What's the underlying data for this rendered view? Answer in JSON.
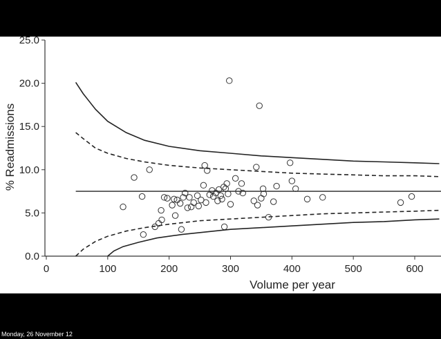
{
  "footer": {
    "timestamp": "Monday, 26 November 12"
  },
  "chart_data": {
    "type": "scatter",
    "title": "",
    "xlabel": "Volume per year",
    "ylabel": "% Readmissions",
    "xlim": [
      0,
      640
    ],
    "ylim": [
      0,
      25
    ],
    "x_ticks": [
      0,
      100,
      200,
      300,
      400,
      500,
      600
    ],
    "y_ticks": [
      "0.0",
      "5.0",
      "10.0",
      "15.0",
      "20.0",
      "25.0"
    ],
    "grid": false,
    "legend": "none",
    "points": [
      {
        "x": 125,
        "y": 5.7
      },
      {
        "x": 143,
        "y": 9.1
      },
      {
        "x": 156,
        "y": 6.9
      },
      {
        "x": 158,
        "y": 2.5
      },
      {
        "x": 168,
        "y": 10.0
      },
      {
        "x": 177,
        "y": 3.4
      },
      {
        "x": 183,
        "y": 3.8
      },
      {
        "x": 187,
        "y": 5.3
      },
      {
        "x": 188,
        "y": 4.2
      },
      {
        "x": 192,
        "y": 6.8
      },
      {
        "x": 197,
        "y": 6.7
      },
      {
        "x": 205,
        "y": 5.9
      },
      {
        "x": 208,
        "y": 6.6
      },
      {
        "x": 210,
        "y": 4.7
      },
      {
        "x": 213,
        "y": 6.5
      },
      {
        "x": 218,
        "y": 6.1
      },
      {
        "x": 220,
        "y": 3.1
      },
      {
        "x": 223,
        "y": 6.8
      },
      {
        "x": 226,
        "y": 7.3
      },
      {
        "x": 230,
        "y": 5.6
      },
      {
        "x": 233,
        "y": 6.8
      },
      {
        "x": 236,
        "y": 5.7
      },
      {
        "x": 240,
        "y": 6.2
      },
      {
        "x": 246,
        "y": 7.0
      },
      {
        "x": 248,
        "y": 5.8
      },
      {
        "x": 252,
        "y": 6.5
      },
      {
        "x": 256,
        "y": 8.2
      },
      {
        "x": 258,
        "y": 10.5
      },
      {
        "x": 260,
        "y": 6.2
      },
      {
        "x": 262,
        "y": 9.9
      },
      {
        "x": 266,
        "y": 7.1
      },
      {
        "x": 270,
        "y": 7.6
      },
      {
        "x": 272,
        "y": 6.9
      },
      {
        "x": 276,
        "y": 7.3
      },
      {
        "x": 279,
        "y": 6.4
      },
      {
        "x": 281,
        "y": 7.7
      },
      {
        "x": 284,
        "y": 7.0
      },
      {
        "x": 286,
        "y": 6.6
      },
      {
        "x": 289,
        "y": 8.0
      },
      {
        "x": 290,
        "y": 3.4
      },
      {
        "x": 292,
        "y": 7.8
      },
      {
        "x": 294,
        "y": 8.4
      },
      {
        "x": 296,
        "y": 7.2
      },
      {
        "x": 298,
        "y": 20.3
      },
      {
        "x": 300,
        "y": 6.0
      },
      {
        "x": 308,
        "y": 9.0
      },
      {
        "x": 313,
        "y": 7.5
      },
      {
        "x": 318,
        "y": 8.4
      },
      {
        "x": 320,
        "y": 7.3
      },
      {
        "x": 338,
        "y": 6.4
      },
      {
        "x": 342,
        "y": 10.3
      },
      {
        "x": 344,
        "y": 5.9
      },
      {
        "x": 347,
        "y": 17.4
      },
      {
        "x": 350,
        "y": 6.7
      },
      {
        "x": 353,
        "y": 7.8
      },
      {
        "x": 354,
        "y": 7.2
      },
      {
        "x": 362,
        "y": 4.5
      },
      {
        "x": 370,
        "y": 6.3
      },
      {
        "x": 375,
        "y": 8.1
      },
      {
        "x": 397,
        "y": 10.8
      },
      {
        "x": 400,
        "y": 8.7
      },
      {
        "x": 406,
        "y": 7.8
      },
      {
        "x": 425,
        "y": 6.6
      },
      {
        "x": 450,
        "y": 6.8
      },
      {
        "x": 577,
        "y": 6.2
      },
      {
        "x": 595,
        "y": 6.9
      }
    ],
    "mean_line": {
      "y": 7.5
    },
    "curves": [
      {
        "name": "upper outer limit",
        "style": "solid",
        "x": [
          48,
          60,
          80,
          100,
          130,
          160,
          200,
          250,
          300,
          350,
          400,
          450,
          500,
          550,
          600,
          640
        ],
        "y": [
          20.1,
          18.8,
          17.0,
          15.6,
          14.3,
          13.4,
          12.7,
          12.2,
          11.9,
          11.6,
          11.4,
          11.2,
          11.0,
          10.9,
          10.8,
          10.7
        ]
      },
      {
        "name": "upper inner limit",
        "style": "dashed",
        "x": [
          48,
          60,
          80,
          100,
          130,
          160,
          200,
          250,
          300,
          350,
          400,
          450,
          500,
          550,
          600,
          640
        ],
        "y": [
          14.3,
          13.6,
          12.5,
          11.9,
          11.3,
          10.9,
          10.5,
          10.2,
          10.0,
          9.8,
          9.6,
          9.5,
          9.4,
          9.3,
          9.3,
          9.2
        ]
      },
      {
        "name": "lower inner limit",
        "style": "dashed",
        "x": [
          48,
          60,
          80,
          100,
          130,
          160,
          200,
          250,
          300,
          350,
          400,
          450,
          500,
          550,
          600,
          640
        ],
        "y": [
          0.0,
          0.8,
          1.7,
          2.3,
          2.9,
          3.3,
          3.7,
          4.1,
          4.3,
          4.5,
          4.7,
          4.9,
          5.0,
          5.1,
          5.2,
          5.3
        ]
      },
      {
        "name": "lower outer limit",
        "style": "solid",
        "x": [
          100,
          110,
          125,
          150,
          180,
          220,
          260,
          300,
          350,
          400,
          450,
          500,
          550,
          600,
          640
        ],
        "y": [
          0.0,
          0.6,
          1.1,
          1.6,
          2.1,
          2.5,
          2.8,
          3.1,
          3.3,
          3.5,
          3.7,
          3.9,
          4.0,
          4.2,
          4.3
        ]
      }
    ]
  }
}
